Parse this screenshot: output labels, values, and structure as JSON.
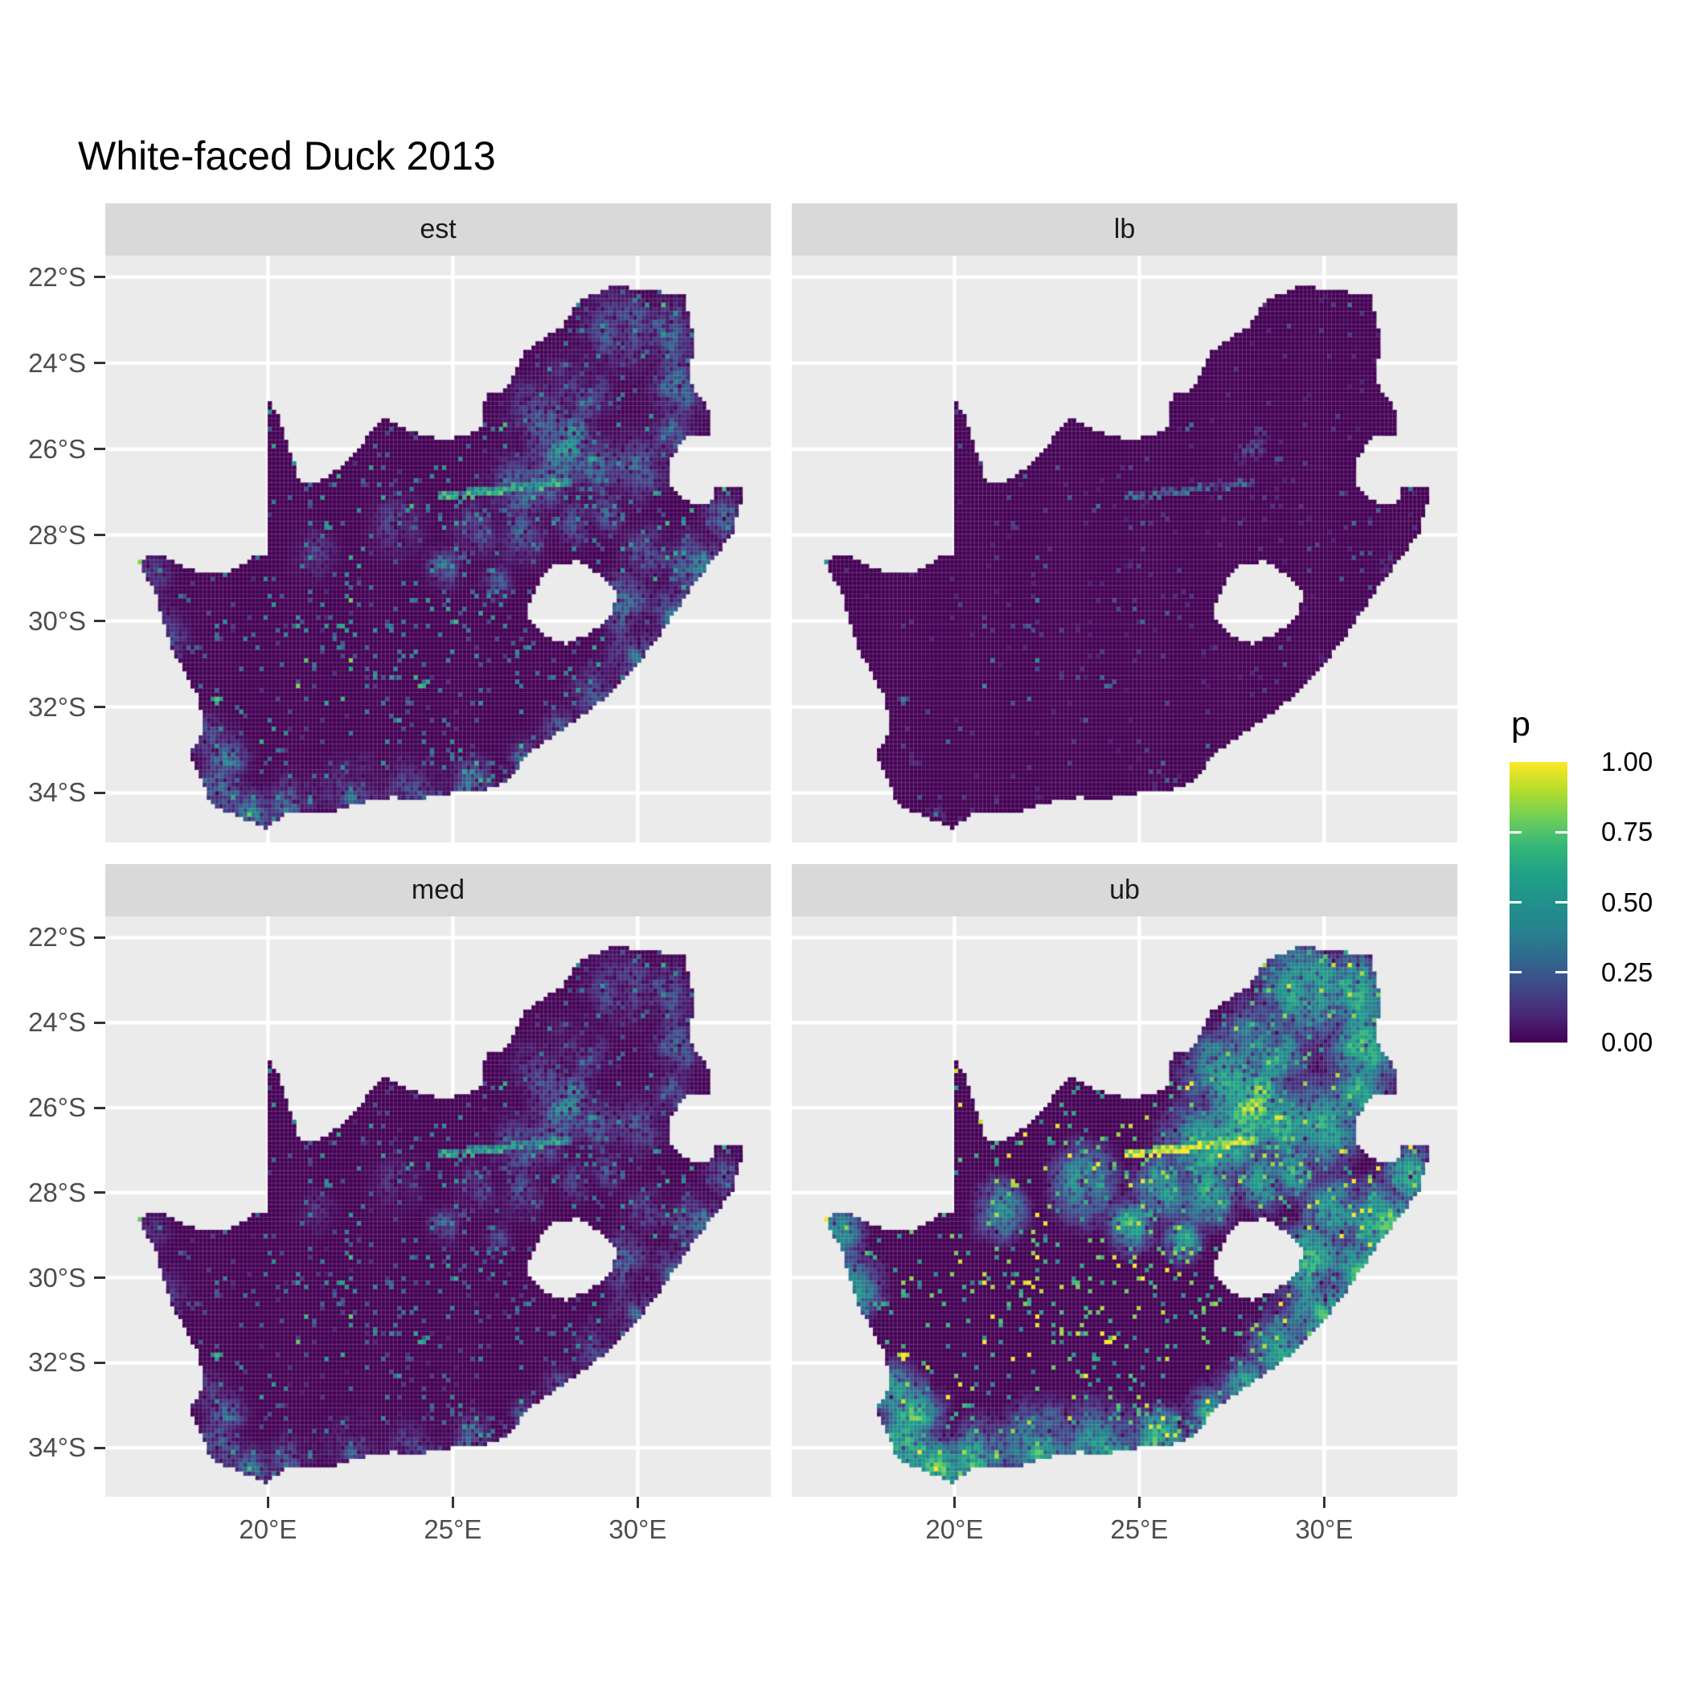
{
  "title": "White-faced Duck 2013",
  "facets": [
    {
      "label": "est"
    },
    {
      "label": "lb"
    },
    {
      "label": "med"
    },
    {
      "label": "ub"
    }
  ],
  "axes": {
    "x": {
      "ticks": [
        {
          "label": "20°E",
          "value": 20
        },
        {
          "label": "25°E",
          "value": 25
        },
        {
          "label": "30°E",
          "value": 30
        }
      ]
    },
    "y": {
      "ticks": [
        {
          "label": "22°S",
          "value": -22
        },
        {
          "label": "24°S",
          "value": -24
        },
        {
          "label": "26°S",
          "value": -26
        },
        {
          "label": "28°S",
          "value": -28
        },
        {
          "label": "30°S",
          "value": -30
        },
        {
          "label": "32°S",
          "value": -32
        },
        {
          "label": "34°S",
          "value": -34
        }
      ]
    }
  },
  "legend": {
    "title": "p",
    "ticks": [
      {
        "label": "1.00",
        "value": 1.0
      },
      {
        "label": "0.75",
        "value": 0.75
      },
      {
        "label": "0.50",
        "value": 0.5
      },
      {
        "label": "0.25",
        "value": 0.25
      },
      {
        "label": "0.00",
        "value": 0.0
      }
    ]
  },
  "colors": {
    "background": "#FFFFFF",
    "panel_bg": "#EBEBEB",
    "strip_bg": "#D9D9D9",
    "grid_line": "#FFFFFF",
    "axis_text": "#4D4D4D",
    "tick_mark": "#333333",
    "strip_text": "#1A1A1A",
    "title_text": "#000000",
    "map_seam": "rgba(255,255,255,0.15)",
    "scale_min": "#440154",
    "scale_max": "#FDE725"
  },
  "chart_data": {
    "type": "heatmap",
    "title": "White-faced Duck 2013",
    "variable": "p",
    "value_range": [
      0,
      1
    ],
    "facets": [
      "est",
      "lb",
      "med",
      "ub"
    ],
    "facet_layout": [
      [
        "est",
        "lb"
      ],
      [
        "med",
        "ub"
      ]
    ],
    "geo": {
      "region": "South Africa",
      "hole": "Lesotho",
      "lon_range": [
        15.6,
        33.6
      ],
      "lat_range": [
        -35.15,
        -21.5
      ]
    },
    "x_tick_values": [
      20,
      25,
      30
    ],
    "y_tick_values": [
      -22,
      -24,
      -26,
      -28,
      -30,
      -32,
      -34
    ],
    "grid": true,
    "legend_position": "right",
    "palette": {
      "name": "viridis",
      "stops": [
        {
          "t": 0.0,
          "c": "#440154"
        },
        {
          "t": 0.1,
          "c": "#482878"
        },
        {
          "t": 0.2,
          "c": "#3E4989"
        },
        {
          "t": 0.3,
          "c": "#31688E"
        },
        {
          "t": 0.4,
          "c": "#26828E"
        },
        {
          "t": 0.5,
          "c": "#21918C"
        },
        {
          "t": 0.6,
          "c": "#1FA187"
        },
        {
          "t": 0.7,
          "c": "#35B779"
        },
        {
          "t": 0.8,
          "c": "#6ECE58"
        },
        {
          "t": 0.9,
          "c": "#B5DE2B"
        },
        {
          "t": 1.0,
          "c": "#FDE725"
        }
      ]
    },
    "cell_deg": {
      "lon": 0.1098,
      "lat": 0.0996
    },
    "outline": [
      [
        16.45,
        -28.58
      ],
      [
        17.05,
        -28.45
      ],
      [
        17.65,
        -28.72
      ],
      [
        18.25,
        -28.88
      ],
      [
        19.0,
        -28.85
      ],
      [
        19.6,
        -28.5
      ],
      [
        19.98,
        -28.42
      ],
      [
        19.98,
        -24.78
      ],
      [
        20.25,
        -25.2
      ],
      [
        20.5,
        -25.8
      ],
      [
        20.7,
        -26.3
      ],
      [
        20.85,
        -26.78
      ],
      [
        21.3,
        -26.82
      ],
      [
        22.1,
        -26.35
      ],
      [
        22.75,
        -25.65
      ],
      [
        23.1,
        -25.28
      ],
      [
        23.45,
        -25.4
      ],
      [
        23.9,
        -25.6
      ],
      [
        24.6,
        -25.75
      ],
      [
        25.4,
        -25.72
      ],
      [
        25.75,
        -25.48
      ],
      [
        25.9,
        -24.75
      ],
      [
        26.45,
        -24.6
      ],
      [
        26.9,
        -23.75
      ],
      [
        27.95,
        -23.15
      ],
      [
        28.35,
        -22.6
      ],
      [
        29.35,
        -22.18
      ],
      [
        30.3,
        -22.32
      ],
      [
        31.25,
        -22.4
      ],
      [
        31.55,
        -23.5
      ],
      [
        31.35,
        -24.4
      ],
      [
        31.95,
        -25.12
      ],
      [
        32.02,
        -25.62
      ],
      [
        31.3,
        -25.72
      ],
      [
        30.82,
        -26.28
      ],
      [
        30.92,
        -26.9
      ],
      [
        31.2,
        -27.2
      ],
      [
        31.95,
        -27.32
      ],
      [
        32.15,
        -26.85
      ],
      [
        32.9,
        -26.86
      ],
      [
        32.55,
        -27.95
      ],
      [
        32.0,
        -28.6
      ],
      [
        31.3,
        -29.4
      ],
      [
        30.7,
        -30.2
      ],
      [
        29.95,
        -31.05
      ],
      [
        29.1,
        -31.8
      ],
      [
        28.1,
        -32.45
      ],
      [
        27.1,
        -33.05
      ],
      [
        26.4,
        -33.75
      ],
      [
        25.65,
        -33.98
      ],
      [
        24.95,
        -34.0
      ],
      [
        24.15,
        -34.12
      ],
      [
        23.35,
        -34.1
      ],
      [
        22.5,
        -34.22
      ],
      [
        21.75,
        -34.42
      ],
      [
        20.5,
        -34.45
      ],
      [
        19.98,
        -34.82
      ],
      [
        19.35,
        -34.62
      ],
      [
        18.82,
        -34.4
      ],
      [
        18.45,
        -34.28
      ],
      [
        18.3,
        -33.88
      ],
      [
        17.88,
        -33.1
      ],
      [
        18.28,
        -32.5
      ],
      [
        18.1,
        -31.75
      ],
      [
        17.35,
        -30.55
      ],
      [
        16.95,
        -29.35
      ],
      [
        16.45,
        -28.58
      ]
    ],
    "hole_outline": [
      [
        27.02,
        -29.62
      ],
      [
        27.38,
        -29.0
      ],
      [
        27.78,
        -28.68
      ],
      [
        28.38,
        -28.6
      ],
      [
        29.0,
        -28.92
      ],
      [
        29.45,
        -29.32
      ],
      [
        29.28,
        -29.9
      ],
      [
        28.72,
        -30.28
      ],
      [
        28.05,
        -30.55
      ],
      [
        27.42,
        -30.3
      ],
      [
        27.05,
        -29.95
      ]
    ],
    "hotspots": [
      [
        28.05,
        -26.15,
        0.75,
        1.0
      ],
      [
        28.25,
        -25.65,
        0.55,
        0.85
      ],
      [
        27.4,
        -26.6,
        0.8,
        0.7
      ],
      [
        28.9,
        -26.3,
        0.8,
        0.65
      ],
      [
        29.9,
        -26.4,
        0.9,
        0.6
      ],
      [
        27.3,
        -25.2,
        0.9,
        0.55
      ],
      [
        28.4,
        -24.6,
        1.0,
        0.5
      ],
      [
        29.5,
        -23.3,
        1.1,
        0.6
      ],
      [
        30.8,
        -23.4,
        0.9,
        0.6
      ],
      [
        31.1,
        -24.6,
        0.9,
        0.55
      ],
      [
        31.0,
        -25.6,
        0.7,
        0.5
      ],
      [
        26.7,
        -26.9,
        0.9,
        0.6
      ],
      [
        26.8,
        -28.0,
        0.7,
        0.5
      ],
      [
        28.4,
        -27.7,
        0.6,
        0.45
      ],
      [
        26.2,
        -29.12,
        0.45,
        0.5
      ],
      [
        31.0,
        -29.85,
        0.65,
        0.8
      ],
      [
        30.4,
        -30.6,
        0.6,
        0.6
      ],
      [
        31.6,
        -28.7,
        0.8,
        0.7
      ],
      [
        32.3,
        -27.6,
        0.6,
        0.55
      ],
      [
        29.6,
        -29.6,
        0.8,
        0.6
      ],
      [
        29.8,
        -30.9,
        0.7,
        0.5
      ],
      [
        28.8,
        -31.6,
        0.7,
        0.45
      ],
      [
        27.9,
        -32.6,
        0.6,
        0.5
      ],
      [
        26.9,
        -33.3,
        0.6,
        0.45
      ],
      [
        25.55,
        -33.85,
        0.65,
        0.6
      ],
      [
        24.0,
        -34.0,
        0.9,
        0.45
      ],
      [
        22.3,
        -34.1,
        0.9,
        0.5
      ],
      [
        20.6,
        -34.35,
        0.8,
        0.55
      ],
      [
        19.6,
        -34.45,
        0.7,
        0.65
      ],
      [
        18.7,
        -33.9,
        0.65,
        0.9
      ],
      [
        18.9,
        -33.3,
        0.7,
        0.6
      ],
      [
        18.35,
        -32.7,
        0.55,
        0.5
      ],
      [
        17.3,
        -30.3,
        0.7,
        0.35
      ],
      [
        16.9,
        -29.0,
        0.6,
        0.3
      ],
      [
        24.75,
        -28.74,
        0.55,
        0.45
      ],
      [
        25.6,
        -27.9,
        0.7,
        0.4
      ],
      [
        21.25,
        -28.45,
        0.6,
        0.35
      ],
      [
        23.5,
        -27.8,
        0.8,
        0.3
      ],
      [
        29.2,
        -27.5,
        0.6,
        0.45
      ],
      [
        30.2,
        -28.4,
        0.7,
        0.5
      ]
    ],
    "river_band": {
      "lon_range": [
        24.6,
        28.2
      ],
      "lat_at_east": -26.78,
      "slope": 0.085,
      "half_width": 0.09
    },
    "speckle": {
      "base_prob": 0.03,
      "clump_prob": 0.1
    },
    "facet_transforms": {
      "est": {
        "gamma": 1.0,
        "gain": 1.0,
        "offset": 0.0,
        "min_cut": 0.0
      },
      "lb": {
        "gamma": 2.6,
        "gain": 0.8,
        "offset": 0.0,
        "min_cut": 0.05
      },
      "med": {
        "gamma": 1.18,
        "gain": 0.97,
        "offset": 0.0,
        "min_cut": 0.0
      },
      "ub": {
        "gamma": 0.45,
        "gain": 1.28,
        "offset": -0.06,
        "min_cut": 0.0
      }
    },
    "facet_summary": {
      "est": "Mostly near-zero (dark purple) with strong hotspot over Gauteng highveld, moderate speckling in Limpopo/Mpumalanga, KwaZulu-Natal coast and southwestern Cape.",
      "lb": "Almost entirely near zero; only sparse bright cells around Gauteng and scattered coastal pixels.",
      "med": "Similar to est, slightly dimmer overall.",
      "ub": "Broad elevated probabilities: large yellow-green blob over Gauteng, extensive bright areas in the northeast, along the KwaZulu-Natal coast and the southern/southwestern Cape coast, scattered teal clumps inland."
    },
    "seed": 2013
  }
}
